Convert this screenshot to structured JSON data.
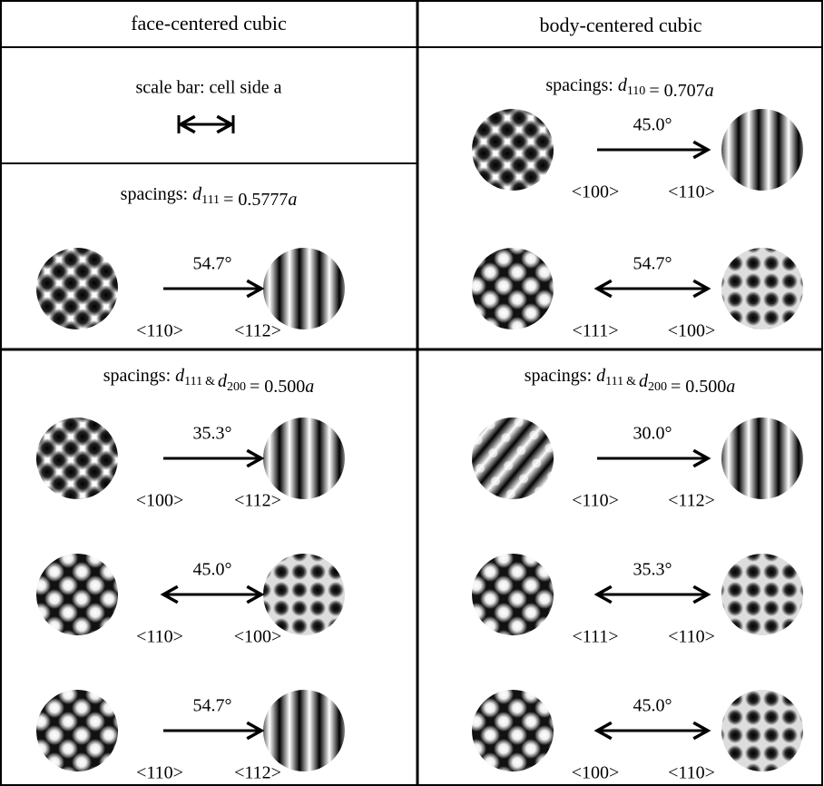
{
  "columns": [
    {
      "header": "face-centered cubic",
      "scale_bar": "scale bar: cell side a",
      "sections": [
        {
          "spacing": {
            "prefix": "spacings:",
            "terms": [
              {
                "symbol": "d",
                "index": "111"
              }
            ],
            "value": "= 0.5777",
            "unit": "a"
          },
          "pairs": [
            {
              "angle": "54.7°",
              "from": "<110>",
              "to": "<112>"
            }
          ]
        },
        {
          "spacing": {
            "prefix": "spacings:",
            "terms": [
              {
                "symbol": "d",
                "index": "111"
              },
              {
                "symbol": "d",
                "index": "200"
              }
            ],
            "joiner": "&",
            "value": "= 0.500",
            "unit": "a"
          },
          "pairs": [
            {
              "angle": "35.3°",
              "from": "<100>",
              "to": "<112>"
            },
            {
              "angle": "45.0°",
              "from": "<110>",
              "to": "<100>"
            },
            {
              "angle": "54.7°",
              "from": "<110>",
              "to": "<112>"
            }
          ]
        }
      ]
    },
    {
      "header": "body-centered cubic",
      "sections": [
        {
          "spacing": {
            "prefix": "spacings:",
            "terms": [
              {
                "symbol": "d",
                "index": "110"
              }
            ],
            "value": "= 0.707",
            "unit": "a"
          },
          "pairs": [
            {
              "angle": "45.0°",
              "from": "<100>",
              "to": "<110>"
            },
            {
              "angle": "54.7°",
              "from": "<111>",
              "to": "<100>"
            }
          ]
        },
        {
          "spacing": {
            "prefix": "spacings:",
            "terms": [
              {
                "symbol": "d",
                "index": "111"
              },
              {
                "symbol": "d",
                "index": "200"
              }
            ],
            "joiner": "&",
            "value": "= 0.500",
            "unit": "a"
          },
          "pairs": [
            {
              "angle": "30.0°",
              "from": "<110>",
              "to": "<112>"
            },
            {
              "angle": "35.3°",
              "from": "<111>",
              "to": "<110>"
            },
            {
              "angle": "45.0°",
              "from": "<100>",
              "to": "<110>"
            }
          ]
        }
      ]
    }
  ]
}
